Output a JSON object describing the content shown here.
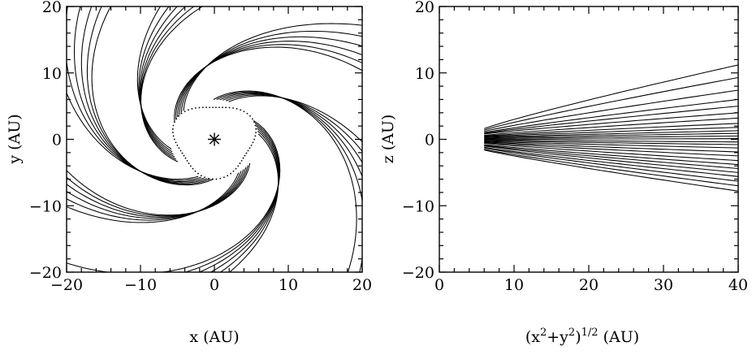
{
  "chart_data": [
    {
      "type": "line",
      "title": "",
      "xlabel": "x (AU)",
      "ylabel": "y (AU)",
      "xlim": [
        -20,
        20
      ],
      "ylim": [
        -20,
        20
      ],
      "xticks": [
        -20,
        -10,
        0,
        10,
        20
      ],
      "yticks": [
        -20,
        -10,
        0,
        10,
        20
      ],
      "xtick_labels": [
        "−20",
        "−10",
        "0",
        "10",
        "20"
      ],
      "ytick_labels": [
        "−20",
        "−10",
        "0",
        "10",
        "20"
      ],
      "grid": false,
      "central_marker": {
        "symbol": "asterisk",
        "x": 0,
        "y": 0
      },
      "description_values": {
        "streamline_arms": 6,
        "streamlines_per_arm": 6,
        "inner_radius_au": 6,
        "spiral_sense": "clockwise-outward"
      }
    },
    {
      "type": "line",
      "title": "",
      "xlabel": "(x²+y²)¹ᐟ² (AU)",
      "xlabel_parts": {
        "base1": "(x",
        "sup1": "2",
        "mid": "+y",
        "sup2": "2",
        "close": ")",
        "sup3": "1/2",
        "unit": " (AU)"
      },
      "ylabel": "z (AU)",
      "xlim": [
        0,
        40
      ],
      "ylim": [
        -20,
        20
      ],
      "xticks": [
        0,
        10,
        20,
        30,
        40
      ],
      "yticks": [
        -20,
        -10,
        0,
        10,
        20
      ],
      "xtick_labels": [
        "0",
        "10",
        "20",
        "30",
        "40"
      ],
      "ytick_labels": [
        "−20",
        "−10",
        "0",
        "10",
        "20"
      ],
      "grid": false,
      "streamlines": [
        {
          "r": [
            6,
            40
          ],
          "z": [
            1.6,
            11.2
          ]
        },
        {
          "r": [
            6,
            40
          ],
          "z": [
            1.4,
            9.3
          ]
        },
        {
          "r": [
            6,
            40
          ],
          "z": [
            1.2,
            7.4
          ]
        },
        {
          "r": [
            6,
            40
          ],
          "z": [
            1.0,
            6.0
          ]
        },
        {
          "r": [
            6,
            40
          ],
          "z": [
            0.9,
            5.0
          ]
        },
        {
          "r": [
            6,
            40
          ],
          "z": [
            0.8,
            4.0
          ]
        },
        {
          "r": [
            6,
            40
          ],
          "z": [
            0.6,
            3.2
          ]
        },
        {
          "r": [
            6,
            40
          ],
          "z": [
            0.5,
            2.4
          ]
        },
        {
          "r": [
            6,
            40
          ],
          "z": [
            0.4,
            1.8
          ]
        },
        {
          "r": [
            6,
            40
          ],
          "z": [
            0.3,
            1.3
          ]
        },
        {
          "r": [
            6,
            40
          ],
          "z": [
            0.2,
            0.9
          ]
        },
        {
          "r": [
            6,
            40
          ],
          "z": [
            0.1,
            0.5
          ]
        },
        {
          "r": [
            6,
            40
          ],
          "z": [
            0.0,
            0.1
          ]
        },
        {
          "r": [
            6,
            40
          ],
          "z": [
            -0.1,
            -0.4
          ]
        },
        {
          "r": [
            6,
            40
          ],
          "z": [
            -0.2,
            -0.8
          ]
        },
        {
          "r": [
            6,
            40
          ],
          "z": [
            -0.3,
            -1.3
          ]
        },
        {
          "r": [
            6,
            40
          ],
          "z": [
            -0.4,
            -1.9
          ]
        },
        {
          "r": [
            6,
            40
          ],
          "z": [
            -0.5,
            -2.5
          ]
        },
        {
          "r": [
            6,
            40
          ],
          "z": [
            -0.6,
            -3.2
          ]
        },
        {
          "r": [
            6,
            40
          ],
          "z": [
            -0.8,
            -3.8
          ]
        },
        {
          "r": [
            6,
            40
          ],
          "z": [
            -0.9,
            -4.4
          ]
        },
        {
          "r": [
            6,
            40
          ],
          "z": [
            -1.0,
            -5.0
          ]
        },
        {
          "r": [
            6,
            40
          ],
          "z": [
            -1.2,
            -5.6
          ]
        },
        {
          "r": [
            6,
            40
          ],
          "z": [
            -1.3,
            -6.3
          ]
        },
        {
          "r": [
            6,
            40
          ],
          "z": [
            -1.5,
            -7.0
          ]
        },
        {
          "r": [
            6,
            40
          ],
          "z": [
            -1.6,
            -7.8
          ]
        }
      ]
    }
  ]
}
